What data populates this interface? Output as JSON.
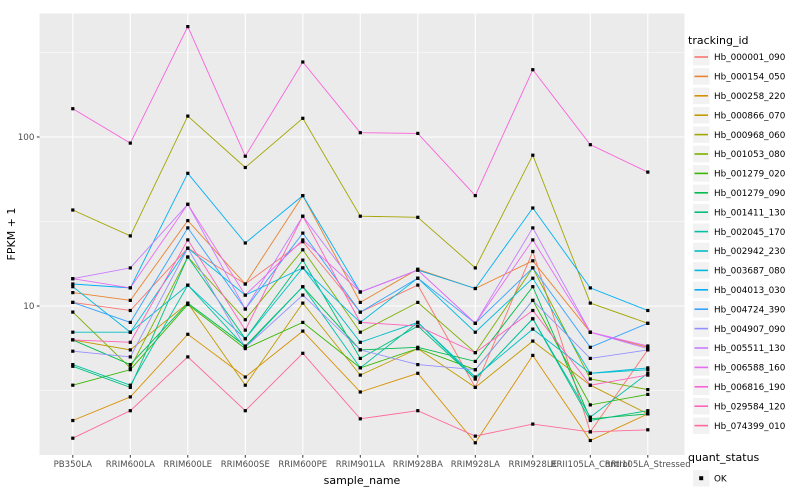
{
  "figure": {
    "background": "#FFFFFF",
    "panel_background": "#EBEBEB",
    "gridline_color": "#FFFFFF",
    "tick_color": "#333333",
    "tick_label_color": "#4D4D4D",
    "axis_title_color": "#000000",
    "point_color": "#000000",
    "legend_key_background": "#F2F2F2"
  },
  "chart_data": {
    "type": "line",
    "title": "",
    "xlabel": "sample_name",
    "ylabel": "FPKM + 1",
    "x_categories": [
      "PB350LA",
      "RRIM600LA",
      "RRIM600LE",
      "RRIM600SE",
      "RRIM600PE",
      "RRIM901LA",
      "RRIM928BA",
      "RRIM928LA",
      "RRIM928LE",
      "RRII105LA_Control",
      "RRII105LA_Stressed"
    ],
    "y_scale": "log10",
    "y_ticks": [
      100,
      10
    ],
    "y_minor_gridlines": [
      3.162,
      31.62,
      316.2
    ],
    "ylim": [
      1.3,
      535
    ],
    "grid": true,
    "legend_position": "right",
    "legend_title": "tracking_id",
    "point_legend": {
      "title": "quant_status",
      "label": "OK",
      "symbol": "black-square"
    },
    "series": [
      {
        "name": "Hb_000001_090",
        "color": "#F8766D",
        "values": [
          10.5,
          9.4,
          22,
          13.5,
          24,
          9.2,
          13.3,
          3.3,
          21,
          1.8,
          5.5
        ]
      },
      {
        "name": "Hb_000154_050",
        "color": "#EA8331",
        "values": [
          12,
          10.8,
          32,
          13.5,
          45,
          10.5,
          16.5,
          12.7,
          18.5,
          7.0,
          5.7
        ]
      },
      {
        "name": "Hb_000258_220",
        "color": "#D89000",
        "values": [
          2.1,
          2.9,
          6.8,
          3.8,
          7.1,
          3.1,
          4.0,
          1.55,
          5.1,
          1.6,
          2.3
        ]
      },
      {
        "name": "Hb_000866_070",
        "color": "#C09B00",
        "values": [
          6.3,
          5.5,
          10.4,
          3.4,
          10.4,
          3.9,
          5.6,
          3.3,
          6.2,
          3.4,
          2.3
        ]
      },
      {
        "name": "Hb_000968_060",
        "color": "#A3A500",
        "values": [
          37,
          26,
          133,
          66,
          129,
          34,
          33.5,
          16.8,
          78,
          10.4,
          7.9
        ]
      },
      {
        "name": "Hb_001053_080",
        "color": "#7CAE00",
        "values": [
          9.2,
          4.3,
          19.5,
          8.3,
          21.5,
          7.0,
          10.5,
          5.3,
          16.8,
          3.7,
          3.2
        ]
      },
      {
        "name": "Hb_001279_020",
        "color": "#39B600",
        "values": [
          3.4,
          4.2,
          10.2,
          5.6,
          8.0,
          4.3,
          5.6,
          4.2,
          10.8,
          2.6,
          3.0
        ]
      },
      {
        "name": "Hb_001279_090",
        "color": "#00BB4E",
        "values": [
          6.3,
          4.5,
          10.4,
          5.8,
          13.0,
          5.5,
          5.7,
          4.7,
          13.0,
          2.15,
          2.3
        ]
      },
      {
        "name": "Hb_001411_130",
        "color": "#00BF7D",
        "values": [
          4.4,
          3.3,
          19.5,
          6.4,
          18.7,
          4.9,
          7.6,
          3.7,
          8.4,
          2.1,
          2.4
        ]
      },
      {
        "name": "Hb_002045_170",
        "color": "#00C1A3",
        "values": [
          4.5,
          3.4,
          13.3,
          5.7,
          13.0,
          4.3,
          8.0,
          3.7,
          8.4,
          2.2,
          4.0
        ]
      },
      {
        "name": "Hb_002942_230",
        "color": "#00BFC4",
        "values": [
          7.0,
          7.0,
          13.3,
          6.4,
          16.8,
          6.1,
          8.0,
          3.8,
          7.3,
          4.0,
          4.2
        ]
      },
      {
        "name": "Hb_003687_080",
        "color": "#00BAE0",
        "values": [
          13.0,
          7.0,
          22,
          11.6,
          16.8,
          8.0,
          14.6,
          7.0,
          14.6,
          4.0,
          4.3
        ]
      },
      {
        "name": "Hb_004013_030",
        "color": "#00B0F6",
        "values": [
          13.5,
          12.8,
          61,
          23.6,
          45,
          12.1,
          16.3,
          12.7,
          38,
          12.8,
          9.4
        ]
      },
      {
        "name": "Hb_004724_390",
        "color": "#35A2FF",
        "values": [
          10.5,
          8.0,
          29,
          9.6,
          27,
          9.2,
          14.6,
          7.9,
          16.8,
          5.7,
          7.9
        ]
      },
      {
        "name": "Hb_004907_090",
        "color": "#9590FF",
        "values": [
          5.4,
          5.0,
          22,
          5.7,
          11.6,
          5.5,
          4.5,
          4.2,
          10.8,
          4.9,
          5.5
        ]
      },
      {
        "name": "Hb_005511_130",
        "color": "#C77CFF",
        "values": [
          14.5,
          16.8,
          40,
          9.6,
          34,
          12.1,
          16.3,
          7.9,
          29,
          7.0,
          5.6
        ]
      },
      {
        "name": "Hb_006588_160",
        "color": "#E76BF3",
        "values": [
          14.5,
          12.8,
          40,
          11.6,
          24.6,
          12.1,
          16.3,
          7.9,
          24.6,
          7.0,
          5.8
        ]
      },
      {
        "name": "Hb_006816_190",
        "color": "#FA62DB",
        "values": [
          147,
          92,
          450,
          77,
          278,
          106,
          105,
          45,
          250,
          90,
          62
        ]
      },
      {
        "name": "Hb_029584_120",
        "color": "#FF62BC",
        "values": [
          6.3,
          6.1,
          24.6,
          7.2,
          34,
          8.0,
          7.6,
          5.3,
          9.4,
          3.4,
          3.9
        ]
      },
      {
        "name": "Hb_074399_010",
        "color": "#FF6A98",
        "values": [
          1.65,
          2.4,
          5.0,
          2.4,
          5.25,
          2.15,
          2.4,
          1.7,
          2.0,
          1.8,
          1.85
        ]
      }
    ]
  }
}
